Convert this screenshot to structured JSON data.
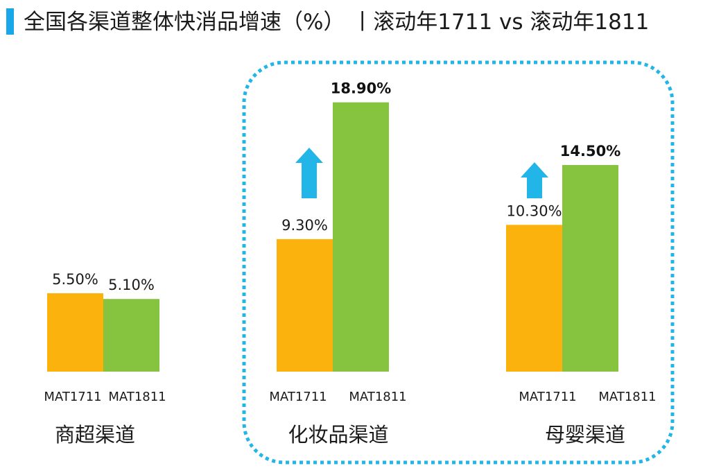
{
  "title": "全国各渠道整体快消品增速（%） 丨滚动年1711 vs 滚动年1811",
  "colors": {
    "accent": "#1aa7e8",
    "mat1711": "#fbb20c",
    "mat1811": "#86c440",
    "highlight": "#22b5e8"
  },
  "chart_data": {
    "type": "bar",
    "title": "全国各渠道整体快消品增速（%） 丨滚动年1711 vs 滚动年1811",
    "xlabel": "",
    "ylabel": "",
    "ylim": [
      0,
      20
    ],
    "series_names": [
      "MAT1711",
      "MAT1811"
    ],
    "groups": [
      {
        "name": "商超渠道",
        "categories": [
          "MAT1711",
          "MAT1811"
        ],
        "values": [
          5.5,
          5.1
        ],
        "labels": [
          "5.50%",
          "5.10%"
        ],
        "bold": [
          false,
          false
        ],
        "arrow": false
      },
      {
        "name": "化妆品渠道",
        "categories": [
          "MAT1711",
          "MAT1811"
        ],
        "values": [
          9.3,
          18.9
        ],
        "labels": [
          "9.30%",
          "18.90%"
        ],
        "bold": [
          false,
          true
        ],
        "arrow": true
      },
      {
        "name": "母婴渠道",
        "categories": [
          "MAT1711",
          "MAT1811"
        ],
        "values": [
          10.3,
          14.5
        ],
        "labels": [
          "10.30%",
          "14.50%"
        ],
        "bold": [
          false,
          true
        ],
        "arrow": true
      }
    ],
    "highlighted_groups": [
      "化妆品渠道",
      "母婴渠道"
    ]
  }
}
